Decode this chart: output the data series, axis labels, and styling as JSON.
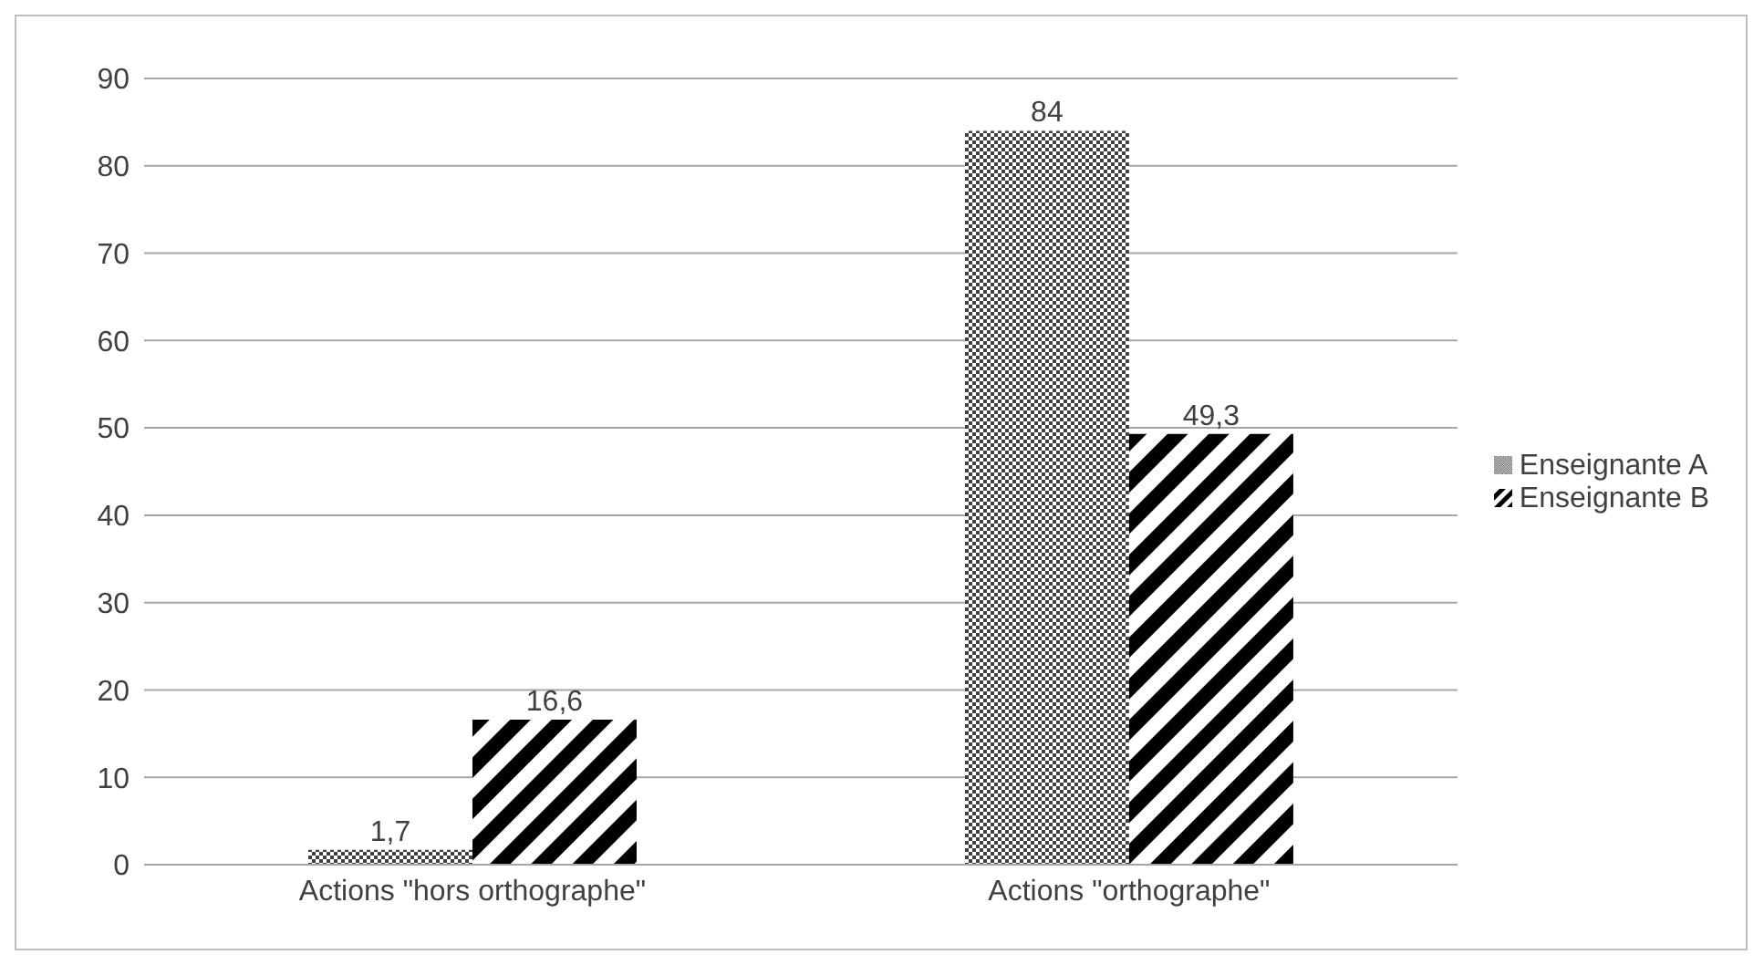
{
  "chart_data": {
    "type": "bar",
    "categories": [
      "Actions \"hors orthographe\"",
      "Actions \"orthographe\""
    ],
    "series": [
      {
        "name": "Enseignante A",
        "color": "#404040",
        "values": [
          1.7,
          84
        ],
        "value_labels": [
          "1,7",
          "84"
        ]
      },
      {
        "name": "Enseignante B",
        "color": "#000000",
        "values": [
          16.6,
          49.3
        ],
        "value_labels": [
          "16,6",
          "49,3"
        ]
      }
    ],
    "ylim": [
      0,
      90
    ],
    "yticks": [
      0,
      10,
      20,
      30,
      40,
      50,
      60,
      70,
      80,
      90
    ],
    "grid": "y",
    "legend": "right"
  }
}
